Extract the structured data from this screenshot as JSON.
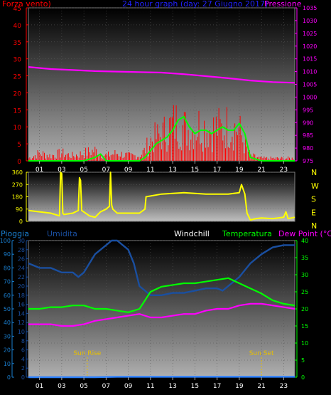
{
  "top_chart": {
    "title": "24 hour graph (day: 27 Giugno 2017)",
    "left_label": "Forza vento)",
    "right_label": "Pressione",
    "left_ticks": [
      0,
      5,
      10,
      15,
      20,
      25,
      30,
      35,
      40,
      45
    ],
    "right_ticks": [
      975,
      980,
      985,
      990,
      995,
      1000,
      1005,
      1010,
      1015,
      1020,
      1025,
      1030,
      1035
    ],
    "x_ticks": [
      "01",
      "03",
      "05",
      "07",
      "09",
      "11",
      "13",
      "15",
      "17",
      "19",
      "21",
      "23"
    ]
  },
  "wind_dir_chart": {
    "left_ticks": [
      0,
      90,
      180,
      270,
      360
    ],
    "right_labels": [
      "N",
      "W",
      "S",
      "E",
      "N"
    ]
  },
  "bottom_chart": {
    "labels": {
      "rain": "Pioggia",
      "humidity": "Umidita",
      "windchill": "Windchill",
      "temperature": "Temperatura",
      "dewpoint": "Dew Point (°C)"
    },
    "rain_ticks": [
      0,
      10,
      20,
      30,
      40,
      50,
      60,
      70,
      80,
      90,
      100
    ],
    "hum_ticks": [
      0,
      2,
      4,
      6,
      8,
      10,
      12,
      14,
      16,
      18,
      20,
      22,
      24,
      26,
      28,
      30
    ],
    "temp_ticks": [
      0,
      5,
      10,
      15,
      20,
      25,
      30,
      35,
      40
    ],
    "sun_rise": "Sun Rise",
    "sun_set": "Sun Set",
    "x_ticks": [
      "01",
      "03",
      "05",
      "07",
      "09",
      "11",
      "13",
      "15",
      "17",
      "19",
      "21",
      "23"
    ]
  },
  "colors": {
    "wind": "#ff0000",
    "gust": "#00ff00",
    "pressure": "#ff00ff",
    "direction": "#ffff00",
    "temperature": "#00ff00",
    "dewpoint": "#ff00ff",
    "humidity": "#1a4fa0",
    "rain": "#2a7fff",
    "sun": "#e8c000",
    "title": "#2222ff",
    "left_axis": "#ff0000",
    "right_axis": "#ff00ff",
    "rain_axis": "#1a7fd0",
    "hum_axis": "#1a4fa0",
    "temp_axis": "#00ff00"
  },
  "chart_data": [
    {
      "type": "line",
      "title": "24 hour graph (day: 27 Giugno 2017)",
      "xlabel": "",
      "x_range_hours": [
        0,
        24
      ],
      "series": [
        {
          "name": "Forza vento)",
          "axis": "left",
          "x": [
            0,
            1,
            2,
            3,
            4,
            5,
            6,
            7,
            8,
            9,
            10,
            10.5,
            11,
            11.5,
            12,
            12.5,
            13,
            13.5,
            14,
            14.5,
            15,
            15.5,
            16,
            16.5,
            17,
            17.5,
            18,
            18.5,
            19,
            19.5,
            20,
            21,
            22,
            23,
            24
          ],
          "values": [
            1,
            3,
            2,
            3,
            2,
            3,
            4,
            2,
            3,
            2,
            2,
            4,
            8,
            9,
            10,
            12,
            14,
            15,
            13,
            12,
            13,
            14,
            13,
            12,
            13,
            12,
            14,
            13,
            12,
            6,
            2,
            1,
            1,
            1,
            1
          ]
        },
        {
          "name": "Raffica",
          "axis": "left",
          "x": [
            0,
            5,
            6,
            6.5,
            7,
            10,
            10.5,
            11,
            11.5,
            12,
            12.5,
            13,
            13.5,
            14,
            14.5,
            15,
            15.5,
            16,
            16.5,
            17,
            17.5,
            18,
            18.5,
            19,
            19.5,
            20,
            21,
            24
          ],
          "values": [
            0,
            0,
            1,
            2,
            0,
            0,
            1,
            3,
            5,
            6,
            7,
            9,
            12,
            13,
            10,
            8,
            9,
            9,
            8,
            9,
            10,
            9,
            9,
            11,
            8,
            1,
            0,
            0
          ]
        },
        {
          "name": "Pressione",
          "axis": "right",
          "x": [
            0,
            2,
            4,
            6,
            8,
            10,
            12,
            14,
            16,
            18,
            20,
            22,
            24
          ],
          "values": [
            1011.8,
            1011.0,
            1010.6,
            1010.2,
            1010.0,
            1009.8,
            1009.6,
            1009.0,
            1008.2,
            1007.4,
            1006.5,
            1005.9,
            1005.6
          ]
        }
      ],
      "ylim_left": [
        0,
        45
      ],
      "ylim_right": [
        975,
        1035
      ]
    },
    {
      "type": "line",
      "xlabel": "",
      "x_range_hours": [
        0,
        24
      ],
      "series": [
        {
          "name": "",
          "x": [
            0,
            1,
            2,
            2.8,
            2.9,
            3.0,
            3.1,
            3.2,
            4,
            4.5,
            4.6,
            4.7,
            4.8,
            5.5,
            6,
            6.5,
            7,
            7.3,
            7.4,
            7.5,
            7.6,
            8,
            9,
            10,
            10.5,
            10.6,
            12,
            14,
            16,
            18,
            19,
            19.2,
            19.5,
            19.7,
            20,
            20.5,
            21,
            22,
            23,
            23.2,
            23.4,
            24
          ],
          "values": [
            80,
            70,
            60,
            40,
            360,
            350,
            60,
            50,
            60,
            80,
            320,
            300,
            80,
            40,
            30,
            70,
            90,
            110,
            360,
            120,
            90,
            60,
            60,
            60,
            90,
            180,
            200,
            210,
            200,
            200,
            210,
            270,
            200,
            60,
            10,
            20,
            25,
            20,
            30,
            70,
            20,
            30
          ]
        }
      ],
      "ylim": [
        0,
        360
      ]
    },
    {
      "type": "line",
      "xlabel": "",
      "x_range_hours": [
        0,
        24
      ],
      "series": [
        {
          "name": "Umidita",
          "axis": "hum",
          "x": [
            0,
            1,
            2,
            3,
            4,
            4.5,
            5,
            5.5,
            6,
            6.5,
            7,
            7.5,
            8,
            8.5,
            9,
            9.5,
            10,
            11,
            12,
            13,
            14,
            15,
            16,
            17,
            17.5,
            18,
            19,
            20,
            21,
            22,
            23,
            24
          ],
          "values": [
            25,
            24,
            24,
            23,
            23,
            22,
            23,
            25,
            27,
            28,
            29,
            30,
            30,
            29,
            28,
            25,
            20,
            18,
            18,
            18.5,
            18.5,
            19,
            19.5,
            19.5,
            19,
            20,
            22,
            25,
            27,
            28.5,
            29,
            29
          ]
        },
        {
          "name": "Temperatura",
          "axis": "temp",
          "x": [
            0,
            1,
            2,
            3,
            4,
            5,
            6,
            7,
            8,
            9,
            10,
            11,
            12,
            13,
            14,
            15,
            16,
            17,
            18,
            19,
            20,
            21,
            22,
            23,
            24
          ],
          "values": [
            20,
            20,
            20.5,
            20.5,
            21,
            21,
            20,
            20,
            19.5,
            19,
            20,
            25,
            26.5,
            27,
            27.5,
            27.5,
            28,
            28.5,
            29,
            27.5,
            26,
            24.5,
            22.5,
            21.5,
            21
          ]
        },
        {
          "name": "Dew Point (°C)",
          "axis": "temp",
          "x": [
            0,
            1,
            2,
            3,
            4,
            5,
            6,
            7,
            8,
            9,
            10,
            11,
            12,
            13,
            14,
            15,
            16,
            17,
            18,
            19,
            20,
            21,
            22,
            23,
            24
          ],
          "values": [
            15.5,
            15.5,
            15.5,
            15,
            15,
            15.5,
            16.5,
            17,
            17.5,
            18,
            18.5,
            17.5,
            17.5,
            18,
            18.5,
            18.5,
            19.5,
            20,
            20,
            21,
            21.5,
            21.5,
            21,
            20.5,
            20
          ]
        },
        {
          "name": "Pioggia",
          "axis": "rain",
          "x": [
            0,
            6,
            8,
            24
          ],
          "values": [
            0,
            0,
            0.3,
            0.3
          ]
        }
      ],
      "ylim_rain": [
        0,
        100
      ],
      "ylim_hum": [
        0,
        30
      ],
      "ylim_temp": [
        0,
        40
      ],
      "annotations": [
        {
          "text": "Sun Rise",
          "x": 5.3
        },
        {
          "text": "Sun Set",
          "x": 21.0
        }
      ]
    }
  ]
}
